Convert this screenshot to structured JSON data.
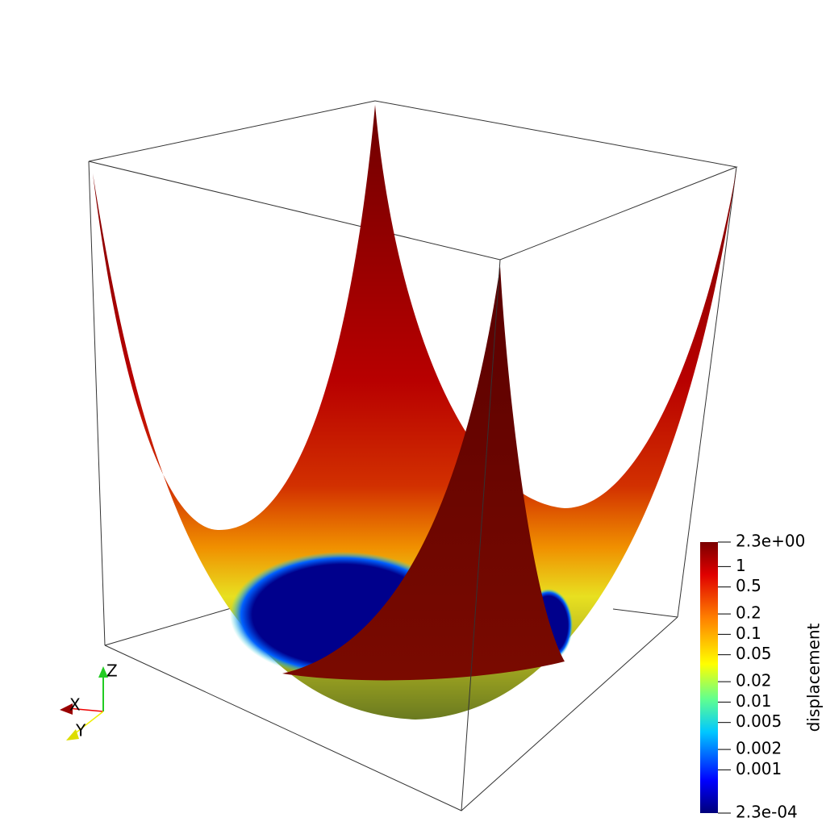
{
  "colorbar": {
    "title": "displacement",
    "scale": "log",
    "range": [
      0.00023,
      2.3
    ],
    "ticks": [
      {
        "value": 2.3,
        "label": "2.3e+00"
      },
      1,
      0.5,
      0.2,
      0.1,
      0.05,
      0.02,
      0.01,
      0.005,
      0.002,
      0.001,
      {
        "value": 0.00023,
        "label": "2.3e-04"
      }
    ]
  },
  "axes_triad": {
    "labels": [
      "X",
      "Y",
      "Z"
    ]
  }
}
